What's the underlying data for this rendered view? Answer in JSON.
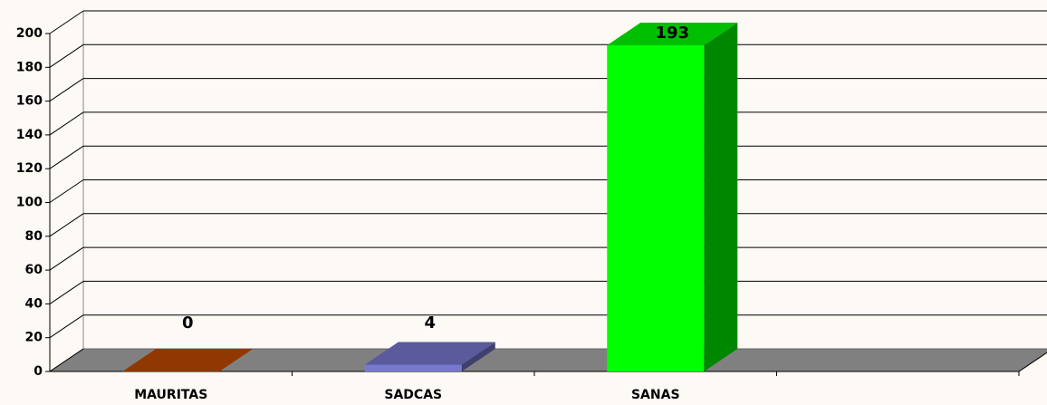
{
  "chart_data": {
    "type": "bar3d",
    "categories": [
      "MAURITAS",
      "SADCAS",
      "SANAS",
      null
    ],
    "series": [
      {
        "name": null,
        "colors": [
          "#c04a00",
          "#7878d0",
          "#00ff00",
          null
        ],
        "values": [
          0,
          4,
          193,
          null
        ]
      }
    ],
    "ylim": [
      0,
      200
    ],
    "yticks": [
      0,
      20,
      40,
      60,
      80,
      100,
      120,
      140,
      160,
      180,
      200
    ],
    "grid": true
  }
}
